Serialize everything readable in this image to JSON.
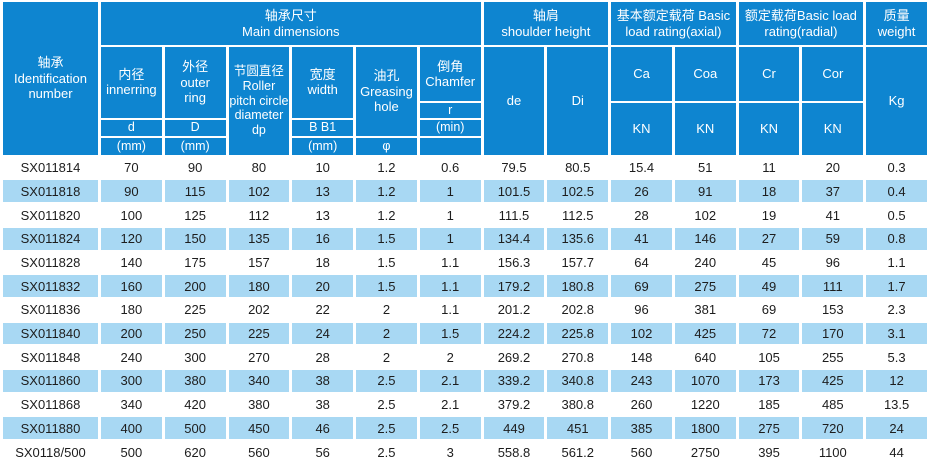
{
  "colors": {
    "header_blue": "#0e85d0",
    "row_alt_blue": "#a8d8f3",
    "row_white": "#ffffff",
    "header_text": "#ffffff",
    "data_text": "#1d1d1d"
  },
  "table": {
    "id_header": {
      "lines": [
        "轴承",
        "Identification number"
      ]
    },
    "groups": {
      "main_dimensions": {
        "zh": "轴承尺寸",
        "en": "Main dimensions"
      },
      "shoulder_height": {
        "zh": "轴肩",
        "en": "shoulder height"
      },
      "axial_rating": {
        "zh": "基本额定载荷 Basic",
        "en": "load rating(axial)"
      },
      "radial_rating": {
        "zh": "额定载荷Basic load",
        "en": "rating(radial)"
      },
      "weight": {
        "zh": "质量",
        "en": "weight"
      }
    },
    "cols": {
      "inner": {
        "zh": "内径",
        "en": "innerring",
        "sym": "d",
        "unit": "(mm)"
      },
      "outer": {
        "zh": "外径",
        "en1": "outer",
        "en2": "ring",
        "sym": "D",
        "unit": "(mm)"
      },
      "pitch": {
        "zh": "节圆直径",
        "en": "Roller pitch circle diameter dp"
      },
      "width": {
        "zh": "宽度",
        "en": "width",
        "sym": "B B1",
        "unit": "(mm)"
      },
      "grease": {
        "zh": "油孔",
        "en": "Greasing hole",
        "unit": "φ"
      },
      "chamfer": {
        "zh": "倒角",
        "en": "Chamfer",
        "sym": "r",
        "unit": "(min)"
      },
      "shoulder": {
        "de": "de",
        "di": "Di"
      },
      "ratings": {
        "ca": "Ca",
        "coa": "Coa",
        "cr": "Cr",
        "cor": "Cor",
        "kn": "KN"
      },
      "weight": {
        "kg": "Kg"
      }
    },
    "rows": [
      [
        "SX011814",
        "70",
        "90",
        "80",
        "10",
        "1.2",
        "0.6",
        "79.5",
        "80.5",
        "15.4",
        "51",
        "11",
        "20",
        "0.3"
      ],
      [
        "SX011818",
        "90",
        "115",
        "102",
        "13",
        "1.2",
        "1",
        "101.5",
        "102.5",
        "26",
        "91",
        "18",
        "37",
        "0.4"
      ],
      [
        "SX011820",
        "100",
        "125",
        "112",
        "13",
        "1.2",
        "1",
        "111.5",
        "112.5",
        "28",
        "102",
        "19",
        "41",
        "0.5"
      ],
      [
        "SX011824",
        "120",
        "150",
        "135",
        "16",
        "1.5",
        "1",
        "134.4",
        "135.6",
        "41",
        "146",
        "27",
        "59",
        "0.8"
      ],
      [
        "SX011828",
        "140",
        "175",
        "157",
        "18",
        "1.5",
        "1.1",
        "156.3",
        "157.7",
        "64",
        "240",
        "45",
        "96",
        "1.1"
      ],
      [
        "SX011832",
        "160",
        "200",
        "180",
        "20",
        "1.5",
        "1.1",
        "179.2",
        "180.8",
        "69",
        "275",
        "49",
        "111",
        "1.7"
      ],
      [
        "SX011836",
        "180",
        "225",
        "202",
        "22",
        "2",
        "1.1",
        "201.2",
        "202.8",
        "96",
        "381",
        "69",
        "153",
        "2.3"
      ],
      [
        "SX011840",
        "200",
        "250",
        "225",
        "24",
        "2",
        "1.5",
        "224.2",
        "225.8",
        "102",
        "425",
        "72",
        "170",
        "3.1"
      ],
      [
        "SX011848",
        "240",
        "300",
        "270",
        "28",
        "2",
        "2",
        "269.2",
        "270.8",
        "148",
        "640",
        "105",
        "255",
        "5.3"
      ],
      [
        "SX011860",
        "300",
        "380",
        "340",
        "38",
        "2.5",
        "2.1",
        "339.2",
        "340.8",
        "243",
        "1070",
        "173",
        "425",
        "12"
      ],
      [
        "SX011868",
        "340",
        "420",
        "380",
        "38",
        "2.5",
        "2.1",
        "379.2",
        "380.8",
        "260",
        "1220",
        "185",
        "485",
        "13.5"
      ],
      [
        "SX011880",
        "400",
        "500",
        "450",
        "46",
        "2.5",
        "2.5",
        "449",
        "451",
        "385",
        "1800",
        "275",
        "720",
        "24"
      ],
      [
        "SX0118/500",
        "500",
        "620",
        "560",
        "56",
        "2.5",
        "3",
        "558.8",
        "561.2",
        "560",
        "2750",
        "395",
        "1100",
        "44"
      ]
    ]
  }
}
